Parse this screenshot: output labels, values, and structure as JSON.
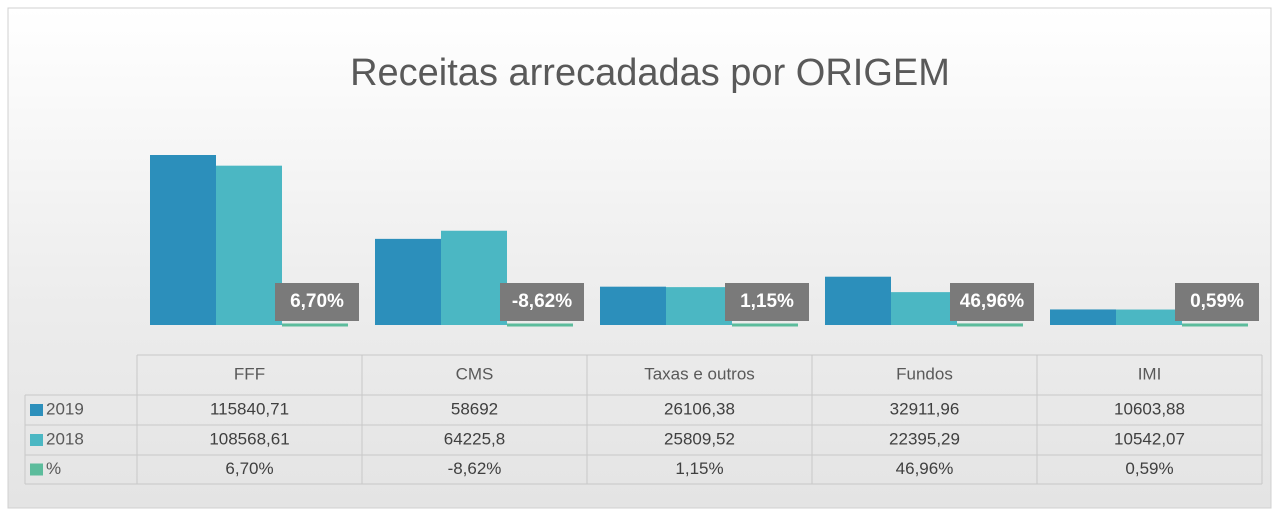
{
  "chart_data": {
    "type": "bar",
    "title": "Receitas  arrecadadas por ORIGEM",
    "categories": [
      "FFF",
      "CMS",
      "Taxas e outros",
      "Fundos",
      "IMI"
    ],
    "series": [
      {
        "name": "2019",
        "color": "#2c8fbb",
        "values": [
          115840.71,
          58692,
          26106.38,
          32911.96,
          10603.88
        ],
        "value_labels": [
          "115840,71",
          "58692",
          "26106,38",
          "32911,96",
          "10603,88"
        ]
      },
      {
        "name": "2018",
        "color": "#4bb7c3",
        "values": [
          108568.61,
          64225.8,
          25809.52,
          22395.29,
          10542.07
        ],
        "value_labels": [
          "108568,61",
          "64225,8",
          "25809,52",
          "22395,29",
          "10542,07"
        ]
      },
      {
        "name": "%",
        "color": "#5cbc9c",
        "values": [
          6.7,
          -8.62,
          1.15,
          46.96,
          0.59
        ],
        "value_labels": [
          "6,70%",
          "-8,62%",
          "1,15%",
          "46,96%",
          "0,59%"
        ]
      }
    ]
  }
}
